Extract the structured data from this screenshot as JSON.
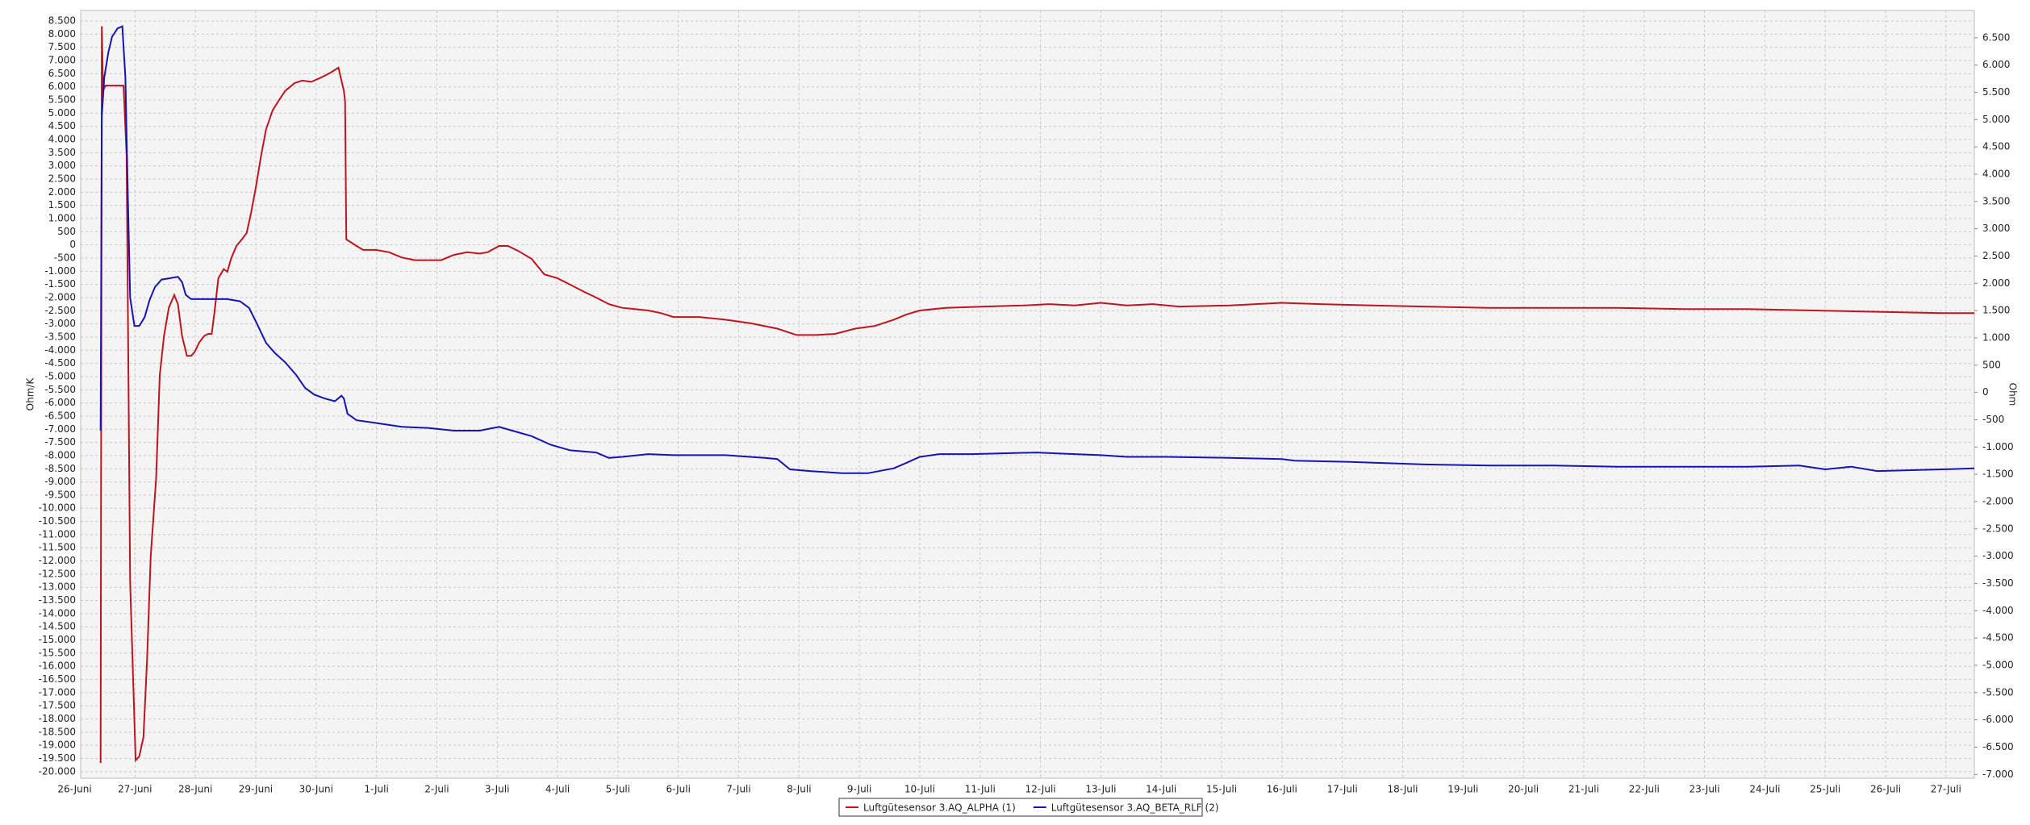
{
  "chart_data": {
    "type": "line",
    "y_label": "Ohm/K",
    "y2_label": "Ohm",
    "grid": true,
    "legend": "bottom",
    "xlim": [
      0.1,
      31.47
    ],
    "ylim": [
      -20250,
      8900
    ],
    "y2lim": [
      -7070,
      7000
    ],
    "xticks": [
      {
        "value": 0,
        "label": "26-Juni"
      },
      {
        "value": 1,
        "label": "27-Juni"
      },
      {
        "value": 2,
        "label": "28-Juni"
      },
      {
        "value": 3,
        "label": "29-Juni"
      },
      {
        "value": 4,
        "label": "30-Juni"
      },
      {
        "value": 5,
        "label": "1-Juli"
      },
      {
        "value": 6,
        "label": "2-Juli"
      },
      {
        "value": 7,
        "label": "3-Juli"
      },
      {
        "value": 8,
        "label": "4-Juli"
      },
      {
        "value": 9,
        "label": "5-Juli"
      },
      {
        "value": 10,
        "label": "6-Juli"
      },
      {
        "value": 11,
        "label": "7-Juli"
      },
      {
        "value": 12,
        "label": "8-Juli"
      },
      {
        "value": 13,
        "label": "9-Juli"
      },
      {
        "value": 14,
        "label": "10-Juli"
      },
      {
        "value": 15,
        "label": "11-Juli"
      },
      {
        "value": 16,
        "label": "12-Juli"
      },
      {
        "value": 17,
        "label": "13-Juli"
      },
      {
        "value": 18,
        "label": "14-Juli"
      },
      {
        "value": 19,
        "label": "15-Juli"
      },
      {
        "value": 20,
        "label": "16-Juli"
      },
      {
        "value": 21,
        "label": "17-Juli"
      },
      {
        "value": 22,
        "label": "18-Juli"
      },
      {
        "value": 23,
        "label": "19-Juli"
      },
      {
        "value": 24,
        "label": "20-Juli"
      },
      {
        "value": 25,
        "label": "21-Juli"
      },
      {
        "value": 26,
        "label": "22-Juli"
      },
      {
        "value": 27,
        "label": "23-Juli"
      },
      {
        "value": 28,
        "label": "24-Juli"
      },
      {
        "value": 29,
        "label": "25-Juli"
      },
      {
        "value": 30,
        "label": "26-Juli"
      },
      {
        "value": 31,
        "label": "27-Juli"
      }
    ],
    "yticks": [
      {
        "value": 8500,
        "label": "8.500"
      },
      {
        "value": 8000,
        "label": "8.000"
      },
      {
        "value": 7500,
        "label": "7.500"
      },
      {
        "value": 7000,
        "label": "7.000"
      },
      {
        "value": 6500,
        "label": "6.500"
      },
      {
        "value": 6000,
        "label": "6.000"
      },
      {
        "value": 5500,
        "label": "5.500"
      },
      {
        "value": 5000,
        "label": "5.000"
      },
      {
        "value": 4500,
        "label": "4.500"
      },
      {
        "value": 4000,
        "label": "4.000"
      },
      {
        "value": 3500,
        "label": "3.500"
      },
      {
        "value": 3000,
        "label": "3.000"
      },
      {
        "value": 2500,
        "label": "2.500"
      },
      {
        "value": 2000,
        "label": "2.000"
      },
      {
        "value": 1500,
        "label": "1.500"
      },
      {
        "value": 1000,
        "label": "1.000"
      },
      500,
      0,
      -500,
      {
        "value": -1000,
        "label": "-1.000"
      },
      {
        "value": -1500,
        "label": "-1.500"
      },
      {
        "value": -2000,
        "label": "-2.000"
      },
      {
        "value": -2500,
        "label": "-2.500"
      },
      {
        "value": -3000,
        "label": "-3.000"
      },
      {
        "value": -3500,
        "label": "-3.500"
      },
      {
        "value": -4000,
        "label": "-4.000"
      },
      {
        "value": -4500,
        "label": "-4.500"
      },
      {
        "value": -5000,
        "label": "-5.000"
      },
      {
        "value": -5500,
        "label": "-5.500"
      },
      {
        "value": -6000,
        "label": "-6.000"
      },
      {
        "value": -6500,
        "label": "-6.500"
      },
      {
        "value": -7000,
        "label": "-7.000"
      },
      {
        "value": -7500,
        "label": "-7.500"
      },
      {
        "value": -8000,
        "label": "-8.000"
      },
      {
        "value": -8500,
        "label": "-8.500"
      },
      {
        "value": -9000,
        "label": "-9.000"
      },
      {
        "value": -9500,
        "label": "-9.500"
      },
      {
        "value": -10000,
        "label": "-10.000"
      },
      {
        "value": -10500,
        "label": "-10.500"
      },
      {
        "value": -11000,
        "label": "-11.000"
      },
      {
        "value": -11500,
        "label": "-11.500"
      },
      {
        "value": -12000,
        "label": "-12.000"
      },
      {
        "value": -12500,
        "label": "-12.500"
      },
      {
        "value": -13000,
        "label": "-13.000"
      },
      {
        "value": -13500,
        "label": "-13.500"
      },
      {
        "value": -14000,
        "label": "-14.000"
      },
      {
        "value": -14500,
        "label": "-14.500"
      },
      {
        "value": -15000,
        "label": "-15.000"
      },
      {
        "value": -15500,
        "label": "-15.500"
      },
      {
        "value": -16000,
        "label": "-16.000"
      },
      {
        "value": -16500,
        "label": "-16.500"
      },
      {
        "value": -17000,
        "label": "-17.000"
      },
      {
        "value": -17500,
        "label": "-17.500"
      },
      {
        "value": -18000,
        "label": "-18.000"
      },
      {
        "value": -18500,
        "label": "-18.500"
      },
      {
        "value": -19000,
        "label": "-19.000"
      },
      {
        "value": -19500,
        "label": "-19.500"
      },
      {
        "value": -20000,
        "label": "-20.000"
      }
    ],
    "y2ticks": [
      {
        "value": 6500,
        "label": "6.500"
      },
      {
        "value": 6000,
        "label": "6.000"
      },
      {
        "value": 5500,
        "label": "5.500"
      },
      {
        "value": 5000,
        "label": "5.000"
      },
      {
        "value": 4500,
        "label": "4.500"
      },
      {
        "value": 4000,
        "label": "4.000"
      },
      {
        "value": 3500,
        "label": "3.500"
      },
      {
        "value": 3000,
        "label": "3.000"
      },
      {
        "value": 2500,
        "label": "2.500"
      },
      {
        "value": 2000,
        "label": "2.000"
      },
      {
        "value": 1500,
        "label": "1.500"
      },
      {
        "value": 1000,
        "label": "1.000"
      },
      500,
      0,
      -500,
      {
        "value": -1000,
        "label": "-1.000"
      },
      {
        "value": -1500,
        "label": "-1.500"
      },
      {
        "value": -2000,
        "label": "-2.000"
      },
      {
        "value": -2500,
        "label": "-2.500"
      },
      {
        "value": -3000,
        "label": "-3.000"
      },
      {
        "value": -3500,
        "label": "-3.500"
      },
      {
        "value": -4000,
        "label": "-4.000"
      },
      {
        "value": -4500,
        "label": "-4.500"
      },
      {
        "value": -5000,
        "label": "-5.000"
      },
      {
        "value": -5500,
        "label": "-5.500"
      },
      {
        "value": -6000,
        "label": "-6.000"
      },
      {
        "value": -6500,
        "label": "-6.500"
      },
      {
        "value": -7000,
        "label": "-7.000"
      }
    ],
    "series": [
      {
        "name": "Luftgütesensor 3.AQ_ALPHA (1)",
        "color": "#c0141c",
        "axis": "y",
        "x": [
          0.43,
          0.45,
          0.47,
          0.51,
          0.62,
          0.81,
          0.86,
          0.92,
          1.01,
          1.07,
          1.14,
          1.2,
          1.26,
          1.35,
          1.41,
          1.48,
          1.56,
          1.65,
          1.71,
          1.78,
          1.86,
          1.93,
          1.99,
          2.06,
          2.14,
          2.21,
          2.27,
          2.32,
          2.38,
          2.47,
          2.53,
          2.59,
          2.68,
          2.77,
          2.85,
          2.92,
          3.0,
          3.09,
          3.17,
          3.28,
          3.39,
          3.49,
          3.64,
          3.77,
          3.92,
          4.07,
          4.24,
          4.37,
          4.46,
          4.48,
          4.5,
          4.57,
          4.67,
          4.78,
          4.99,
          5.21,
          5.42,
          5.64,
          5.85,
          6.07,
          6.28,
          6.5,
          6.71,
          6.84,
          7.03,
          7.18,
          7.35,
          7.57,
          7.78,
          8.0,
          8.21,
          8.42,
          8.64,
          8.85,
          9.07,
          9.28,
          9.5,
          9.71,
          9.92,
          10.35,
          10.78,
          11.21,
          11.64,
          11.96,
          12.28,
          12.6,
          12.93,
          13.25,
          13.57,
          13.78,
          14.0,
          14.43,
          15.07,
          15.71,
          16.14,
          16.57,
          17.0,
          17.43,
          17.86,
          18.29,
          19.14,
          19.99,
          20.64,
          21.5,
          22.36,
          23.43,
          24.5,
          25.57,
          26.65,
          27.72,
          28.79,
          29.86,
          30.94,
          31.47
        ],
        "values": [
          -19670,
          8300,
          5850,
          6050,
          6050,
          6050,
          3400,
          -12800,
          -19570,
          -19420,
          -18690,
          -15740,
          -11820,
          -8870,
          -4950,
          -3470,
          -2390,
          -1900,
          -2250,
          -3470,
          -4210,
          -4210,
          -4060,
          -3720,
          -3470,
          -3380,
          -3380,
          -2490,
          -1270,
          -920,
          -1020,
          -530,
          -40,
          210,
          450,
          1190,
          2170,
          3400,
          4380,
          5110,
          5510,
          5850,
          6140,
          6240,
          6190,
          6340,
          6540,
          6730,
          5850,
          5460,
          210,
          110,
          -40,
          -190,
          -190,
          -280,
          -480,
          -580,
          -580,
          -580,
          -380,
          -280,
          -330,
          -280,
          -40,
          -40,
          -230,
          -530,
          -1120,
          -1270,
          -1510,
          -1760,
          -2000,
          -2250,
          -2390,
          -2440,
          -2490,
          -2590,
          -2740,
          -2740,
          -2840,
          -2980,
          -3180,
          -3420,
          -3420,
          -3380,
          -3180,
          -3080,
          -2840,
          -2640,
          -2490,
          -2390,
          -2340,
          -2300,
          -2250,
          -2300,
          -2200,
          -2300,
          -2250,
          -2340,
          -2300,
          -2200,
          -2250,
          -2300,
          -2340,
          -2390,
          -2390,
          -2390,
          -2440,
          -2440,
          -2490,
          -2540,
          -2590,
          -2590
        ]
      },
      {
        "name": "Luftgütesensor 3.AQ_BETA_RLF (2)",
        "color": "#1414b4",
        "axis": "y2",
        "x": [
          0.43,
          0.45,
          0.49,
          0.56,
          0.62,
          0.71,
          0.79,
          0.84,
          0.88,
          0.92,
          0.99,
          1.07,
          1.16,
          1.24,
          1.33,
          1.44,
          1.56,
          1.71,
          1.78,
          1.84,
          1.93,
          2.1,
          2.32,
          2.53,
          2.74,
          2.89,
          3.02,
          3.17,
          3.32,
          3.49,
          3.67,
          3.82,
          3.97,
          4.14,
          4.31,
          4.42,
          4.46,
          4.52,
          4.67,
          4.99,
          5.42,
          5.85,
          6.28,
          6.71,
          7.03,
          7.25,
          7.57,
          7.89,
          8.21,
          8.64,
          8.85,
          9.07,
          9.5,
          9.92,
          10.78,
          11.43,
          11.64,
          11.85,
          12.18,
          12.71,
          13.14,
          13.57,
          13.78,
          14.0,
          14.32,
          14.86,
          15.93,
          16.57,
          17.0,
          17.43,
          18.07,
          19.14,
          20.0,
          20.21,
          21.07,
          22.36,
          23.43,
          24.5,
          25.57,
          26.65,
          27.72,
          28.57,
          29.0,
          29.43,
          29.86,
          30.94,
          31.47
        ],
        "values": [
          -700,
          5060,
          5770,
          6240,
          6520,
          6670,
          6710,
          5770,
          3630,
          1740,
          1220,
          1220,
          1380,
          1690,
          1930,
          2070,
          2090,
          2120,
          2020,
          1790,
          1710,
          1710,
          1710,
          1710,
          1670,
          1550,
          1260,
          910,
          720,
          550,
          320,
          80,
          -40,
          -110,
          -160,
          -60,
          -110,
          -390,
          -510,
          -560,
          -630,
          -650,
          -700,
          -700,
          -630,
          -700,
          -800,
          -960,
          -1060,
          -1100,
          -1200,
          -1180,
          -1130,
          -1150,
          -1150,
          -1200,
          -1220,
          -1410,
          -1440,
          -1480,
          -1480,
          -1390,
          -1290,
          -1180,
          -1130,
          -1130,
          -1100,
          -1130,
          -1150,
          -1180,
          -1180,
          -1200,
          -1220,
          -1250,
          -1270,
          -1320,
          -1340,
          -1340,
          -1360,
          -1360,
          -1360,
          -1340,
          -1410,
          -1360,
          -1440,
          -1410,
          -1390
        ]
      }
    ]
  }
}
